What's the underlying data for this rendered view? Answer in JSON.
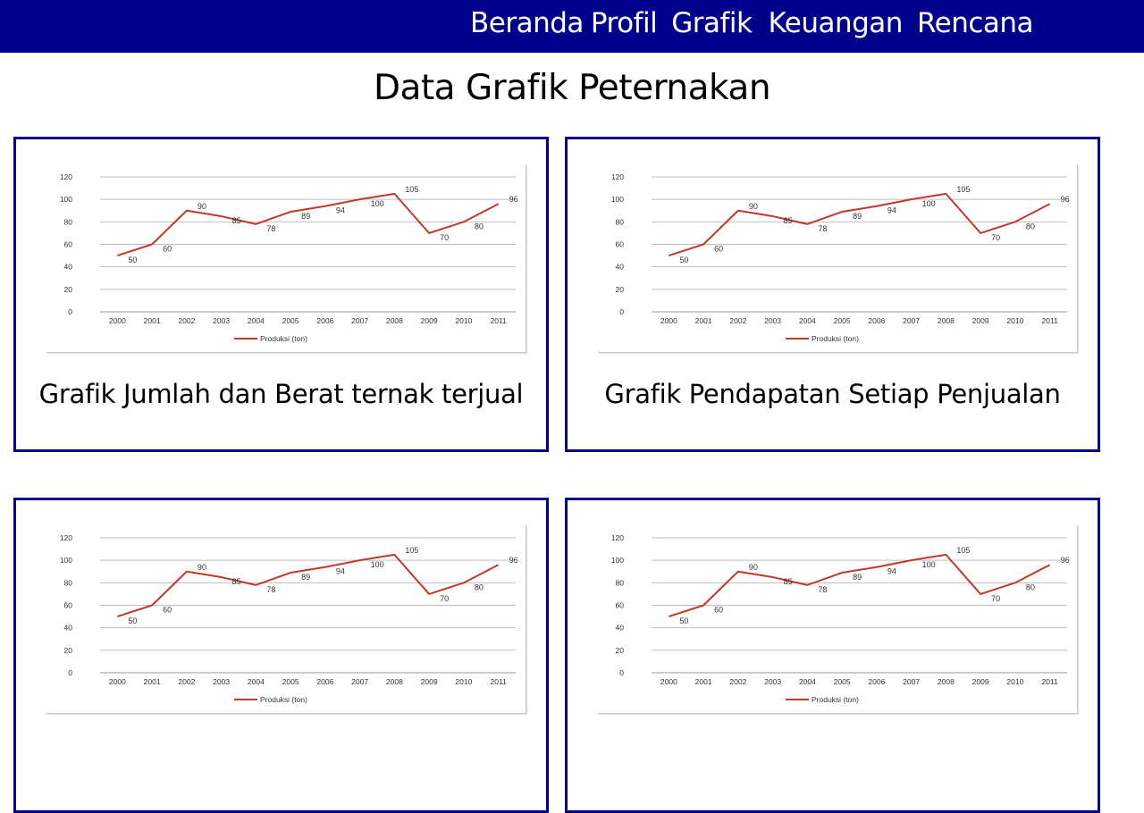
{
  "nav": {
    "items": [
      {
        "label": "Beranda",
        "gap": 8
      },
      {
        "label": "Profil",
        "gap": 16
      },
      {
        "label": "Grafik",
        "gap": 18
      },
      {
        "label": "Keuangan",
        "gap": 16
      },
      {
        "label": "Rencana",
        "gap": 0
      }
    ]
  },
  "page": {
    "title": "Data Grafik Peternakan"
  },
  "colors": {
    "header": "#00008b",
    "line": "#c0392b"
  },
  "cards": [
    {
      "caption": "Grafik Jumlah dan Berat ternak terjual"
    },
    {
      "caption": "Grafik Pendapatan Setiap Penjualan"
    },
    {
      "caption": ""
    },
    {
      "caption": ""
    }
  ],
  "chart_data": {
    "type": "line",
    "categories": [
      "2000",
      "2001",
      "2002",
      "2003",
      "2004",
      "2005",
      "2006",
      "2007",
      "2008",
      "2009",
      "2010",
      "2011"
    ],
    "series": [
      {
        "name": "Produksi (ton)",
        "values": [
          50,
          60,
          90,
          85,
          78,
          89,
          94,
          100,
          105,
          70,
          80,
          96
        ]
      }
    ],
    "y_ticks": [
      0,
      20,
      40,
      60,
      80,
      100,
      120
    ],
    "ylim": [
      0,
      120
    ],
    "grid": true,
    "legend": "bottom"
  }
}
